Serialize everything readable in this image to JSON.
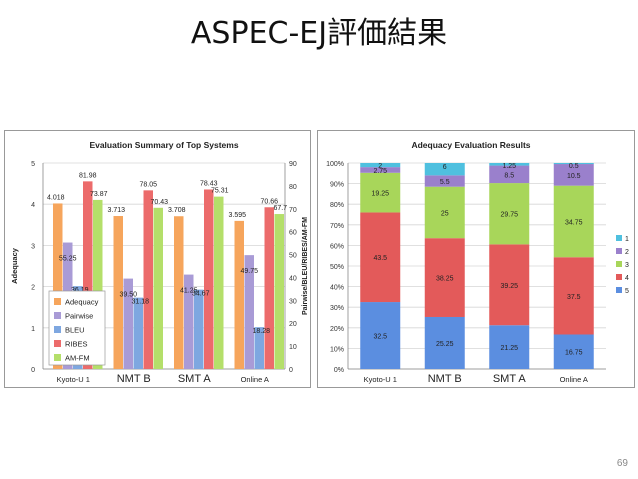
{
  "slide": {
    "title": "ASPEC-EJ評価結果",
    "page_number": "69"
  },
  "chart_data": [
    {
      "type": "bar",
      "title": "Evaluation Summary of Top Systems",
      "categories": [
        "Kyoto-U 1",
        "NMT B",
        "SMT A",
        "Online A"
      ],
      "ylabel": "Adequacy",
      "y2label": "Pairwise/BLEU/RIBES/AM-FM",
      "ylim": [
        0,
        5
      ],
      "y2lim": [
        0,
        90
      ],
      "yticks": [
        "0",
        "1",
        "2",
        "3",
        "4",
        "5"
      ],
      "y2ticks": [
        "0",
        "10",
        "20",
        "30",
        "40",
        "50",
        "60",
        "70",
        "80",
        "90"
      ],
      "grid": true,
      "legend": "bottom-left",
      "series": [
        {
          "name": "Adequacy",
          "axis": "left",
          "color": "#f6a55c",
          "values": [
            4.018,
            3.713,
            3.708,
            3.595
          ],
          "labels": [
            "4.018",
            "3.713",
            "3.708",
            "3.595"
          ]
        },
        {
          "name": "Pairwise",
          "axis": "right",
          "color": "#a99bd6",
          "values": [
            55.25,
            39.5,
            41.25,
            49.75
          ],
          "labels": [
            "55.25",
            "39.50",
            "41.25",
            "49.75"
          ]
        },
        {
          "name": "BLEU",
          "axis": "right",
          "color": "#7ea7e0",
          "values": [
            36.19,
            31.18,
            34.67,
            18.28
          ],
          "labels": [
            "36.19",
            "31.18",
            "34.67",
            "18.28"
          ]
        },
        {
          "name": "RIBES",
          "axis": "right",
          "color": "#ec6b6b",
          "values": [
            81.98,
            78.05,
            78.43,
            70.66
          ],
          "labels": [
            "81.98",
            "78.05",
            "78.43",
            "70.66"
          ]
        },
        {
          "name": "AM-FM",
          "axis": "right",
          "color": "#b4df6a",
          "values": [
            73.87,
            70.43,
            75.31,
            67.7
          ],
          "labels": [
            "73.87",
            "70.43",
            "75.31",
            "67.7"
          ]
        }
      ]
    },
    {
      "type": "bar",
      "stacked": true,
      "title": "Adequacy Evaluation Results",
      "categories": [
        "Kyoto-U 1",
        "NMT B",
        "SMT A",
        "Online A"
      ],
      "ylim": [
        0,
        100
      ],
      "yticks": [
        "0%",
        "10%",
        "20%",
        "30%",
        "40%",
        "50%",
        "60%",
        "70%",
        "80%",
        "90%",
        "100%"
      ],
      "grid": true,
      "legend": "right",
      "series": [
        {
          "name": "5",
          "color": "#5b8ee0",
          "values": [
            32.5,
            25.25,
            21.25,
            16.75
          ],
          "labels": [
            "32.5",
            "25.25",
            "21.25",
            "16.75"
          ]
        },
        {
          "name": "4",
          "color": "#e35a5a",
          "values": [
            43.5,
            38.25,
            39.25,
            37.5
          ],
          "labels": [
            "43.5",
            "38.25",
            "39.25",
            "37.5"
          ]
        },
        {
          "name": "3",
          "color": "#a8d65a",
          "values": [
            19.25,
            25,
            29.75,
            34.75
          ],
          "labels": [
            "19.25",
            "25",
            "29.75",
            "34.75"
          ]
        },
        {
          "name": "2",
          "color": "#9a80cc",
          "values": [
            2.75,
            5.5,
            8.5,
            10.5
          ],
          "labels": [
            "2.75",
            "5.5",
            "8.5",
            "10.5"
          ]
        },
        {
          "name": "1",
          "color": "#4fc0df",
          "values": [
            2,
            6,
            1.25,
            0.5
          ],
          "labels": [
            "2",
            "6",
            "1.25",
            "0.5"
          ]
        }
      ]
    }
  ]
}
